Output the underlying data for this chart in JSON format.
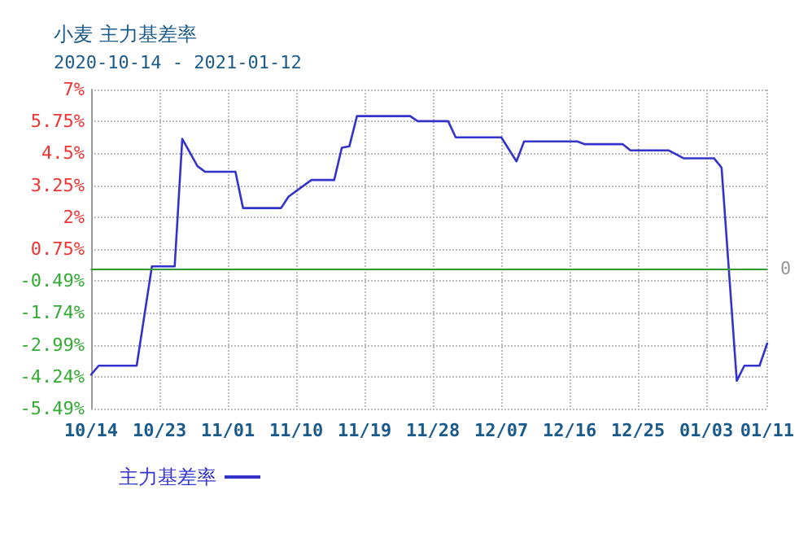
{
  "chart_data": {
    "type": "line",
    "title": "小麦 主力基差率",
    "subtitle": "2020-10-14 - 2021-01-12",
    "x": [
      "2020-10-14",
      "2020-10-15",
      "2020-10-20",
      "2020-10-22",
      "2020-10-25",
      "2020-10-26",
      "2020-10-28",
      "2020-10-29",
      "2020-11-02",
      "2020-11-03",
      "2020-11-08",
      "2020-11-09",
      "2020-11-12",
      "2020-11-15",
      "2020-11-16",
      "2020-11-17",
      "2020-11-18",
      "2020-11-25",
      "2020-11-26",
      "2020-11-30",
      "2020-12-01",
      "2020-12-07",
      "2020-12-09",
      "2020-12-10",
      "2020-12-17",
      "2020-12-18",
      "2020-12-23",
      "2020-12-24",
      "2020-12-29",
      "2020-12-31",
      "2021-01-04",
      "2021-01-05",
      "2021-01-07",
      "2021-01-08",
      "2021-01-10",
      "2021-01-11"
    ],
    "series": [
      {
        "name": "主力基差率",
        "color": "#3333cc",
        "values": [
          -4.16,
          -3.81,
          -3.81,
          0.08,
          0.08,
          5.07,
          4.0,
          3.78,
          3.78,
          2.36,
          2.36,
          2.81,
          3.46,
          3.46,
          4.72,
          4.78,
          5.96,
          5.96,
          5.76,
          5.76,
          5.13,
          5.13,
          4.19,
          4.97,
          4.97,
          4.86,
          4.86,
          4.62,
          4.62,
          4.31,
          4.31,
          3.94,
          -4.4,
          -3.81,
          -3.81,
          -2.94
        ]
      }
    ],
    "xlim": [
      "2020-10-14",
      "2021-01-11"
    ],
    "xticks": [
      {
        "value": "2020-10-14",
        "label": "10/14"
      },
      {
        "value": "2020-10-23",
        "label": "10/23"
      },
      {
        "value": "2020-11-01",
        "label": "11/01"
      },
      {
        "value": "2020-11-10",
        "label": "11/10"
      },
      {
        "value": "2020-11-19",
        "label": "11/19"
      },
      {
        "value": "2020-11-28",
        "label": "11/28"
      },
      {
        "value": "2020-12-07",
        "label": "12/07"
      },
      {
        "value": "2020-12-16",
        "label": "12/16"
      },
      {
        "value": "2020-12-25",
        "label": "12/25"
      },
      {
        "value": "2021-01-03",
        "label": "01/03"
      },
      {
        "value": "2021-01-11",
        "label": "01/11"
      }
    ],
    "ylim": [
      -5.49,
      7
    ],
    "yticks": [
      {
        "value": 7,
        "label": "7%"
      },
      {
        "value": 5.75,
        "label": "5.75%"
      },
      {
        "value": 4.5,
        "label": "4.5%"
      },
      {
        "value": 3.25,
        "label": "3.25%"
      },
      {
        "value": 2,
        "label": "2%"
      },
      {
        "value": 0.75,
        "label": "0.75%"
      },
      {
        "value": -0.49,
        "label": "-0.49%"
      },
      {
        "value": -1.74,
        "label": "-1.74%"
      },
      {
        "value": -2.99,
        "label": "-2.99%"
      },
      {
        "value": -4.24,
        "label": "-4.24%"
      },
      {
        "value": -5.49,
        "label": "-5.49%"
      }
    ],
    "ref_lines": [
      {
        "axis": "y",
        "value": 0,
        "label": "0",
        "color": "#339933"
      }
    ],
    "grid": true,
    "legend": "bottom left",
    "marker": "none",
    "line_style": "solid"
  }
}
